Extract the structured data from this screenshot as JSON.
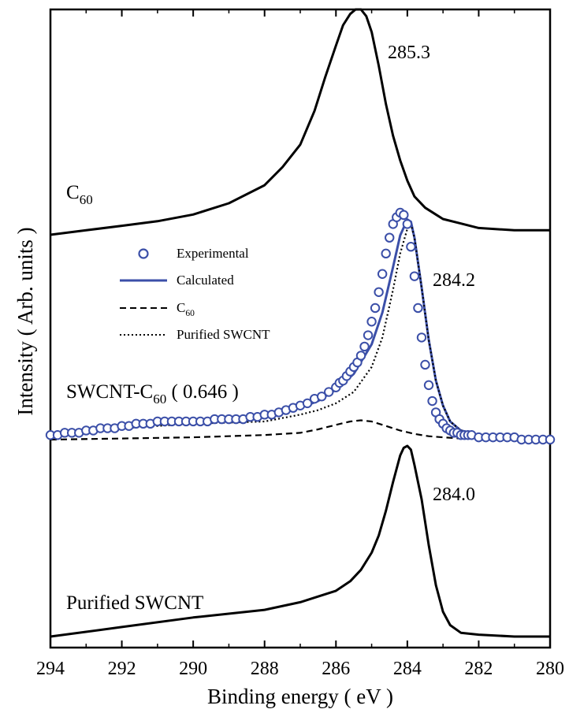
{
  "chart_data": {
    "type": "line",
    "xlabel": "Binding energy ( eV )",
    "ylabel": "Intensity ( Arb. units )",
    "xlim": [
      294,
      280
    ],
    "x_reversed": true,
    "x_ticks": [
      294,
      292,
      290,
      288,
      286,
      284,
      282,
      280
    ],
    "x_tick_labels": [
      "294",
      "292",
      "290",
      "288",
      "286",
      "284",
      "282",
      "280"
    ],
    "y_ticks_shown": false,
    "grid": false,
    "legend_position": "center-left",
    "legend": [
      {
        "label": "Experimental",
        "style": "open-circle",
        "color": "#3b4fa8"
      },
      {
        "label": "Calculated",
        "style": "solid",
        "color": "#3b4fa8"
      },
      {
        "label": "C",
        "sub": "60",
        "style": "dashed",
        "color": "#000000"
      },
      {
        "label": "Purified SWCNT",
        "style": "dotted",
        "color": "#000000"
      }
    ],
    "panels": [
      {
        "id": "c60",
        "label_main": "C",
        "label_sub": "60",
        "label_rest": "",
        "peak_label": "285.3",
        "series": [
          {
            "name": "C60",
            "style": "solid",
            "color": "#000000",
            "x": [
              294.0,
              293.0,
              292.0,
              291.0,
              290.0,
              289.0,
              288.0,
              287.5,
              287.0,
              286.6,
              286.3,
              286.0,
              285.8,
              285.6,
              285.45,
              285.3,
              285.15,
              285.0,
              284.8,
              284.6,
              284.4,
              284.2,
              284.0,
              283.8,
              283.5,
              283.2,
              283.0,
              282.5,
              282.0,
              281.0,
              280.0
            ],
            "y": [
              0.0,
              0.02,
              0.04,
              0.06,
              0.09,
              0.14,
              0.22,
              0.3,
              0.4,
              0.55,
              0.7,
              0.84,
              0.93,
              0.98,
              1.0,
              1.0,
              0.97,
              0.9,
              0.75,
              0.58,
              0.44,
              0.33,
              0.24,
              0.17,
              0.12,
              0.09,
              0.07,
              0.05,
              0.03,
              0.02,
              0.02
            ]
          }
        ]
      },
      {
        "id": "swcnt-c60",
        "label_main": "SWCNT-C",
        "label_sub": "60",
        "label_rest": " ( 0.646 )",
        "peak_label": "284.2",
        "series": [
          {
            "name": "Experimental",
            "style": "open-circle",
            "color": "#3b4fa8",
            "x": [
              294.0,
              293.8,
              293.6,
              293.4,
              293.2,
              293.0,
              292.8,
              292.6,
              292.4,
              292.2,
              292.0,
              291.8,
              291.6,
              291.4,
              291.2,
              291.0,
              290.8,
              290.6,
              290.4,
              290.2,
              290.0,
              289.8,
              289.6,
              289.4,
              289.2,
              289.0,
              288.8,
              288.6,
              288.4,
              288.2,
              288.0,
              287.8,
              287.6,
              287.4,
              287.2,
              287.0,
              286.8,
              286.6,
              286.4,
              286.2,
              286.0,
              285.9,
              285.8,
              285.7,
              285.6,
              285.5,
              285.4,
              285.3,
              285.2,
              285.1,
              285.0,
              284.9,
              284.8,
              284.7,
              284.6,
              284.5,
              284.4,
              284.3,
              284.2,
              284.1,
              284.0,
              283.9,
              283.8,
              283.7,
              283.6,
              283.5,
              283.4,
              283.3,
              283.2,
              283.1,
              283.0,
              282.9,
              282.8,
              282.7,
              282.6,
              282.5,
              282.4,
              282.3,
              282.2,
              282.0,
              281.8,
              281.6,
              281.4,
              281.2,
              281.0,
              280.8,
              280.6,
              280.4,
              280.2,
              280.0
            ],
            "y": [
              0.02,
              0.02,
              0.03,
              0.03,
              0.03,
              0.04,
              0.04,
              0.05,
              0.05,
              0.05,
              0.06,
              0.06,
              0.07,
              0.07,
              0.07,
              0.08,
              0.08,
              0.08,
              0.08,
              0.08,
              0.08,
              0.08,
              0.08,
              0.09,
              0.09,
              0.09,
              0.09,
              0.09,
              0.1,
              0.1,
              0.11,
              0.11,
              0.12,
              0.13,
              0.14,
              0.15,
              0.16,
              0.18,
              0.19,
              0.21,
              0.23,
              0.25,
              0.26,
              0.28,
              0.3,
              0.32,
              0.34,
              0.37,
              0.41,
              0.46,
              0.52,
              0.58,
              0.65,
              0.73,
              0.82,
              0.89,
              0.95,
              0.98,
              1.0,
              0.99,
              0.95,
              0.85,
              0.72,
              0.58,
              0.45,
              0.33,
              0.24,
              0.17,
              0.12,
              0.09,
              0.07,
              0.05,
              0.04,
              0.03,
              0.03,
              0.02,
              0.02,
              0.02,
              0.02,
              0.01,
              0.01,
              0.01,
              0.01,
              0.01,
              0.01,
              0.0,
              0.0,
              0.0,
              0.0,
              0.0
            ]
          },
          {
            "name": "Calculated",
            "style": "solid",
            "color": "#3b4fa8",
            "x": [
              294.0,
              292.0,
              290.0,
              288.0,
              287.0,
              286.5,
              286.0,
              285.5,
              285.0,
              284.7,
              284.4,
              284.2,
              284.0,
              283.9,
              283.8,
              283.6,
              283.4,
              283.2,
              283.0,
              282.8,
              282.5,
              282.0,
              281.0,
              280.0
            ],
            "y": [
              0.02,
              0.06,
              0.08,
              0.1,
              0.14,
              0.17,
              0.22,
              0.29,
              0.42,
              0.56,
              0.76,
              0.9,
              0.97,
              0.96,
              0.89,
              0.67,
              0.44,
              0.26,
              0.15,
              0.08,
              0.04,
              0.02,
              0.01,
              0.0
            ]
          },
          {
            "name": "C60",
            "style": "dashed",
            "color": "#000000",
            "x": [
              294.0,
              292.0,
              290.0,
              288.0,
              287.0,
              286.5,
              286.0,
              285.6,
              285.3,
              285.0,
              284.6,
              284.2,
              283.8,
              283.4,
              283.0,
              282.5,
              282.0,
              281.0,
              280.0
            ],
            "y": [
              0.0,
              0.005,
              0.01,
              0.02,
              0.03,
              0.045,
              0.065,
              0.08,
              0.085,
              0.08,
              0.06,
              0.04,
              0.025,
              0.015,
              0.01,
              0.005,
              0.003,
              0.002,
              0.002
            ]
          },
          {
            "name": "Purified SWCNT",
            "style": "dotted",
            "color": "#000000",
            "x": [
              294.0,
              292.0,
              290.0,
              288.0,
              287.0,
              286.5,
              286.0,
              285.5,
              285.0,
              284.7,
              284.4,
              284.2,
              284.0,
              283.9,
              283.8,
              283.6,
              283.4,
              283.2,
              283.0,
              282.8,
              282.5,
              282.0,
              281.0,
              280.0
            ],
            "y": [
              0.02,
              0.05,
              0.07,
              0.08,
              0.11,
              0.13,
              0.16,
              0.21,
              0.32,
              0.45,
              0.66,
              0.82,
              0.93,
              0.95,
              0.89,
              0.67,
              0.44,
              0.26,
              0.15,
              0.08,
              0.04,
              0.02,
              0.01,
              0.0
            ]
          }
        ]
      },
      {
        "id": "purified-swcnt",
        "label_main": "Purified SWCNT",
        "label_sub": "",
        "label_rest": "",
        "peak_label": "284.0",
        "series": [
          {
            "name": "Purified SWCNT",
            "style": "solid",
            "color": "#000000",
            "x": [
              294.0,
              292.0,
              290.0,
              288.0,
              287.0,
              286.5,
              286.0,
              285.6,
              285.3,
              285.0,
              284.8,
              284.6,
              284.4,
              284.2,
              284.1,
              284.0,
              283.9,
              283.8,
              283.6,
              283.4,
              283.2,
              283.0,
              282.8,
              282.5,
              282.0,
              281.0,
              280.0
            ],
            "y": [
              0.0,
              0.05,
              0.1,
              0.14,
              0.18,
              0.21,
              0.24,
              0.29,
              0.35,
              0.44,
              0.53,
              0.66,
              0.81,
              0.95,
              0.99,
              1.0,
              0.98,
              0.9,
              0.72,
              0.48,
              0.27,
              0.13,
              0.06,
              0.02,
              0.01,
              0.0,
              0.0
            ]
          }
        ]
      }
    ]
  }
}
